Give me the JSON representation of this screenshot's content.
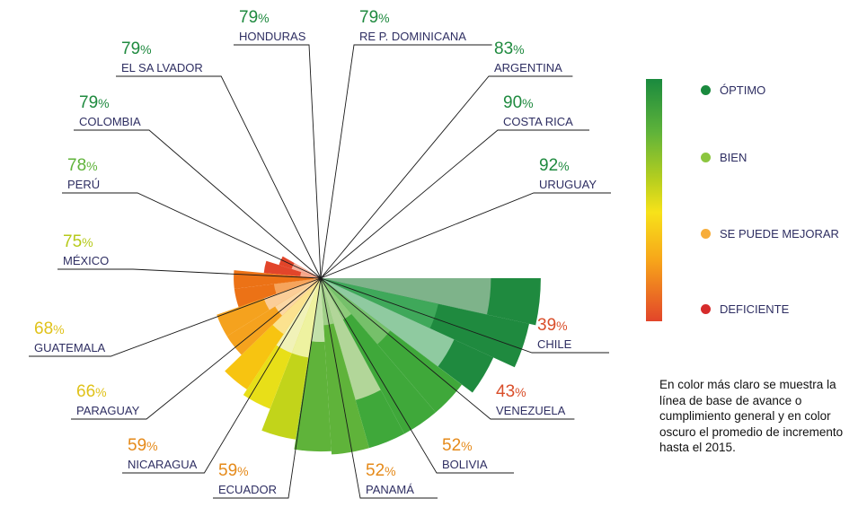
{
  "chart_data": {
    "type": "polar-area",
    "title": "",
    "categories": [
      "URUGUAY",
      "COSTA RICA",
      "ARGENTINA",
      "RE P. DOMINICANA",
      "HONDURAS",
      "EL SA LVADOR",
      "COLOMBIA",
      "PERÚ",
      "MÉXICO",
      "GUATEMALA",
      "PARAGUAY",
      "NICARAGUA",
      "ECUADOR",
      "PANAMÁ",
      "BOLIVIA",
      "VENEZUELA",
      "CHILE"
    ],
    "series": [
      {
        "name": "",
        "values": [
          92,
          90,
          83,
          79,
          79,
          79,
          79,
          78,
          75,
          68,
          66,
          59,
          59,
          52,
          52,
          43,
          39
        ],
        "labels": [
          "92%",
          "90%",
          "83%",
          "79%",
          "79%",
          "79%",
          "79%",
          "78%",
          "75%",
          "68%",
          "66%",
          "59%",
          "59%",
          "52%",
          "52%",
          "43%",
          "39%"
        ]
      },
      {
        "name": "",
        "values": [
          77,
          62,
          70,
          52,
          40,
          64,
          40,
          45,
          50,
          50,
          46,
          42,
          44,
          40,
          28,
          32,
          35
        ]
      }
    ],
    "colors": {
      "outer": [
        "#1f8a3f",
        "#1f8a3f",
        "#1f8a3f",
        "#3fa83a",
        "#3fa83a",
        "#3fa83a",
        "#5fb33a",
        "#5fb33a",
        "#c2d41a",
        "#e8df18",
        "#f7c411",
        "#f5a21e",
        "#f5a21e",
        "#ec7216",
        "#ec7216",
        "#e2452a",
        "#e2452a"
      ],
      "inner": [
        "#7eb38a",
        "#3fa85a",
        "#8fcaa0",
        "#76c06a",
        "#8ecb7a",
        "#b2d699",
        "#a0cf88",
        "#c3e1aa",
        "#eef2a0",
        "#f1f2b8",
        "#fbe28f",
        "#fbd7a4",
        "#fbcd98",
        "#f6a45c",
        "#f2a06a",
        "#f7a98b",
        "#f7b09a"
      ],
      "pct_text": [
        "#1f8a3f",
        "#1f8a3f",
        "#1f8a3f",
        "#1f8a3f",
        "#1f8a3f",
        "#1f8a3f",
        "#1f8a3f",
        "#5fb33a",
        "#b6c91a",
        "#e0c21a",
        "#e0c21a",
        "#e58a1a",
        "#e58a1a",
        "#e58a1a",
        "#e58a1a",
        "#d94e2a",
        "#d94e2a"
      ]
    },
    "legend": [
      {
        "label": "ÓPTIMO",
        "color": "#1a8a3e"
      },
      {
        "label": "BIEN",
        "color": "#8cc63f"
      },
      {
        "label": "SE PUEDE MEJORAR",
        "color": "#f7ad3a"
      },
      {
        "label": "DEFICIENTE",
        "color": "#d62b2b"
      }
    ]
  },
  "note": "En color más claro se muestra la línea de base de avance o cumplimiento general y en color oscuro el promedio de incremento hasta el 2015."
}
